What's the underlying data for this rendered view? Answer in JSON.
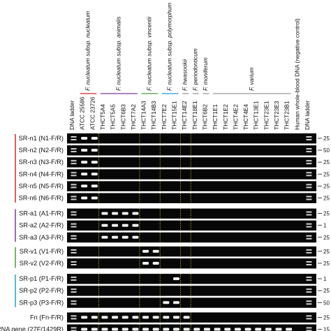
{
  "figure": {
    "lanes": [
      "DNA ladder",
      "ATCC 25586",
      "ATCC 23726",
      "THCT5A4",
      "THCT5A5",
      "THCT6B3",
      "THCT7A2",
      "THCT14A3",
      "THCT14B3",
      "THCT7E2",
      "THCT15E1",
      "THCT14E2",
      "THCT18E1",
      "THCT6B2",
      "THCT1E1",
      "THCT1E2",
      "THCT4E2",
      "THCT4E4",
      "THCT13E1",
      "THCT23E1",
      "THCT23E3",
      "THCT23B1",
      "Human whole-blood DNA (negative control)",
      "DNA ladder"
    ],
    "species_groups": [
      {
        "label": "F. nucleatum subsp. nucleatum",
        "color": "#d7262b"
      },
      {
        "label": "F. nucleatum subsp. animalis",
        "color": "#7a3c96"
      },
      {
        "label": "F. nucleatum subsp. vincentii",
        "color": "#4e9a3c"
      },
      {
        "label": "F. nucleatum subsp. polymorphum",
        "color": "#1f9ed6"
      },
      {
        "label": "F. hwasookii",
        "color": "#999999"
      },
      {
        "label": "F. periodonticum",
        "color": "#999999"
      },
      {
        "label": "F. moniferum",
        "color": "#999999"
      },
      {
        "label": "F. varium",
        "color": "#999999"
      }
    ],
    "rows": [
      {
        "label": "SR-n1 (N1-F/R)",
        "size": "25",
        "bands": [
          1,
          2
        ]
      },
      {
        "label": "SR-n2 (N2-F/R)",
        "size": "50",
        "bands": [
          1,
          2
        ]
      },
      {
        "label": "SR-n3 (N3-F/R)",
        "size": "25",
        "bands": [
          1,
          2
        ]
      },
      {
        "label": "SR-n4 (N4-F/R)",
        "size": "25",
        "bands": [
          1,
          2
        ]
      },
      {
        "label": "SR-n5 (N5-F/R)",
        "size": "25",
        "bands": [
          1,
          2
        ]
      },
      {
        "label": "SR-n6 (N6-F/R)",
        "size": "25",
        "bands": [
          1,
          2
        ]
      },
      {
        "label": "SR-a1 (A1-F/R)",
        "size": "25",
        "bands": [
          3,
          4,
          5,
          6
        ]
      },
      {
        "label": "SR-a2 (A2-F/R)",
        "size": "1",
        "bands": [
          3,
          4,
          5,
          6
        ]
      },
      {
        "label": "SR-a3 (A3-F/R)",
        "size": "25",
        "bands": [
          3,
          4,
          5,
          6
        ]
      },
      {
        "label": "SR-v1 (V1-F/R)",
        "size": "25",
        "bands": [
          7,
          8
        ]
      },
      {
        "label": "SR-v2 (V2-F/R)",
        "size": "25",
        "bands": [
          7,
          8
        ]
      },
      {
        "label": "SR-p1 (P1-F/R)",
        "size": "1",
        "bands": [
          10
        ]
      },
      {
        "label": "SR-p2 (P2-F/R)",
        "size": "25",
        "bands": []
      },
      {
        "label": "SR-p3 (P3-F/R)",
        "size": "50",
        "bands": [
          9,
          10
        ]
      },
      {
        "label": "Fn (Fn-F/R)",
        "size": "25",
        "bands": [
          1,
          2,
          3,
          4,
          5,
          6,
          7,
          8,
          9,
          10,
          11
        ]
      },
      {
        "label": "rRNA gene (27F/1429R)",
        "size": "15",
        "bands": [
          1,
          2,
          3,
          4,
          5,
          6,
          7,
          8,
          9,
          10,
          11,
          12,
          13,
          14,
          15,
          16,
          17,
          18,
          19,
          20,
          21
        ]
      }
    ],
    "row_groups": [
      {
        "rows": [
          0,
          5
        ],
        "color": "#d7262b"
      },
      {
        "rows": [
          6,
          8
        ],
        "color": "#7a3c96"
      },
      {
        "rows": [
          9,
          10
        ],
        "color": "#4e9a3c"
      },
      {
        "rows": [
          11,
          13
        ],
        "color": "#1f9ed6"
      }
    ],
    "group_separators_after_lane": [
      2,
      6,
      8,
      10,
      11
    ],
    "colors": {
      "gel": "#070707",
      "band": "#f4f4f4",
      "ladder": "#cfcfcf",
      "separator": "#e8d92a"
    }
  }
}
